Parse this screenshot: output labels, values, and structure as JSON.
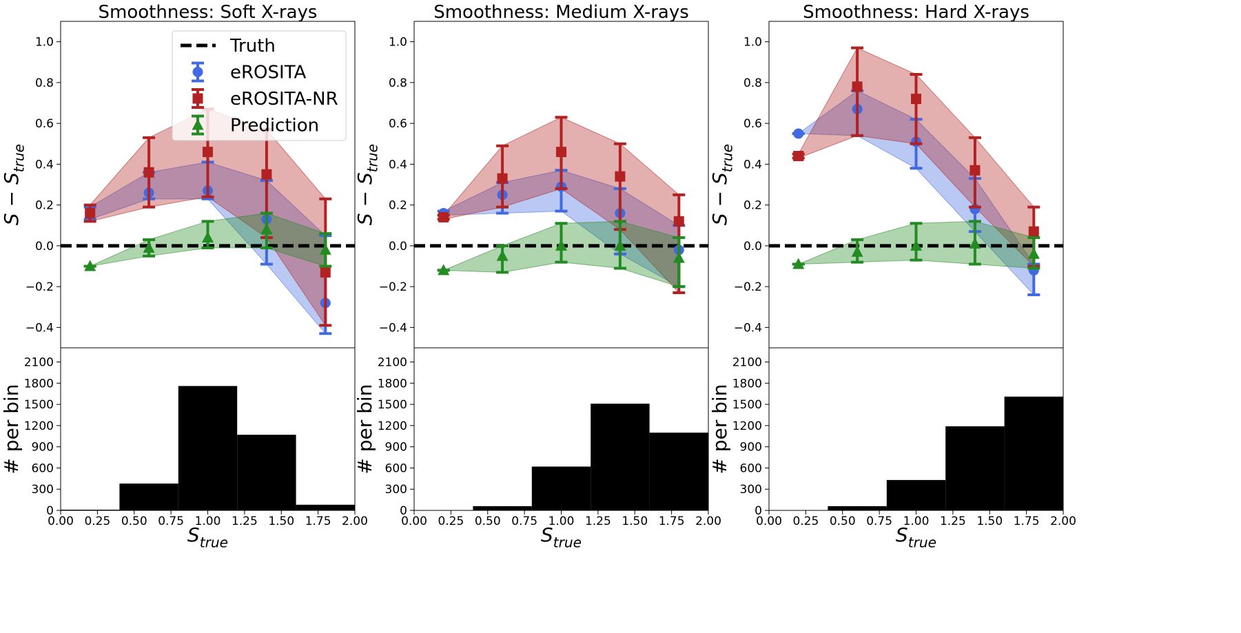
{
  "chart_data": [
    {
      "type": "line",
      "title": "Smoothness: Soft X-rays",
      "ylabel": "S − S",
      "ylabel_sub": "true",
      "xlabel": "S",
      "xlabel_sub": "true",
      "xlim": [
        0,
        2
      ],
      "ylim": [
        -0.5,
        1.1
      ],
      "yticks": [
        -0.4,
        -0.2,
        0.0,
        0.2,
        0.4,
        0.6,
        0.8,
        1.0
      ],
      "xticks": [
        0.0,
        0.25,
        0.5,
        0.75,
        1.0,
        1.25,
        1.5,
        1.75,
        2.0
      ],
      "truth_line": 0,
      "legend_position": "top-right",
      "series": [
        {
          "name": "eROSITA",
          "color": "#4169e1",
          "marker": "circle",
          "x": [
            0.2,
            0.6,
            1.0,
            1.4,
            1.8
          ],
          "y": [
            0.16,
            0.26,
            0.27,
            0.13,
            -0.28
          ],
          "lo": [
            0.13,
            0.23,
            0.23,
            -0.09,
            -0.43
          ],
          "hi": [
            0.19,
            0.36,
            0.41,
            0.32,
            0.05
          ]
        },
        {
          "name": "eROSITA-NR",
          "color": "#b22222",
          "marker": "square",
          "x": [
            0.2,
            0.6,
            1.0,
            1.4,
            1.8
          ],
          "y": [
            0.16,
            0.36,
            0.46,
            0.35,
            -0.13
          ],
          "lo": [
            0.12,
            0.19,
            0.24,
            0.04,
            -0.39
          ],
          "hi": [
            0.2,
            0.53,
            0.67,
            0.57,
            0.23
          ]
        },
        {
          "name": "Prediction",
          "color": "#228b22",
          "marker": "triangle",
          "x": [
            0.2,
            0.6,
            1.0,
            1.4,
            1.8
          ],
          "y": [
            -0.1,
            -0.01,
            0.04,
            0.08,
            -0.02
          ],
          "lo": [
            -0.1,
            -0.05,
            -0.01,
            -0.01,
            -0.1
          ],
          "hi": [
            -0.1,
            0.03,
            0.12,
            0.16,
            0.06
          ]
        }
      ],
      "histogram": {
        "ylabel": "# per bin",
        "ylim": [
          0,
          2300
        ],
        "yticks": [
          0,
          300,
          600,
          900,
          1200,
          1500,
          1800,
          2100
        ],
        "bin_edges": [
          0.0,
          0.4,
          0.8,
          1.2,
          1.6,
          2.0
        ],
        "counts": [
          10,
          380,
          1760,
          1070,
          80
        ]
      }
    },
    {
      "type": "line",
      "title": "Smoothness: Medium X-rays",
      "ylabel": "S − S",
      "ylabel_sub": "true",
      "xlabel": "S",
      "xlabel_sub": "true",
      "xlim": [
        0,
        2
      ],
      "ylim": [
        -0.5,
        1.1
      ],
      "yticks": [
        -0.4,
        -0.2,
        0.0,
        0.2,
        0.4,
        0.6,
        0.8,
        1.0
      ],
      "xticks": [
        0.0,
        0.25,
        0.5,
        0.75,
        1.0,
        1.25,
        1.5,
        1.75,
        2.0
      ],
      "truth_line": 0,
      "series": [
        {
          "name": "eROSITA",
          "color": "#4169e1",
          "marker": "circle",
          "x": [
            0.2,
            0.6,
            1.0,
            1.4,
            1.8
          ],
          "y": [
            0.16,
            0.25,
            0.29,
            0.16,
            -0.02
          ],
          "lo": [
            0.15,
            0.16,
            0.17,
            -0.04,
            -0.2
          ],
          "hi": [
            0.17,
            0.31,
            0.37,
            0.28,
            0.1
          ]
        },
        {
          "name": "eROSITA-NR",
          "color": "#b22222",
          "marker": "square",
          "x": [
            0.2,
            0.6,
            1.0,
            1.4,
            1.8
          ],
          "y": [
            0.14,
            0.33,
            0.46,
            0.34,
            0.12
          ],
          "lo": [
            0.13,
            0.19,
            0.28,
            0.08,
            -0.23
          ],
          "hi": [
            0.15,
            0.49,
            0.63,
            0.5,
            0.25
          ]
        },
        {
          "name": "Prediction",
          "color": "#228b22",
          "marker": "triangle",
          "x": [
            0.2,
            0.6,
            1.0,
            1.4,
            1.8
          ],
          "y": [
            -0.12,
            -0.05,
            0.0,
            0.0,
            -0.06
          ],
          "lo": [
            -0.12,
            -0.13,
            -0.08,
            -0.11,
            -0.2
          ],
          "hi": [
            -0.12,
            0.0,
            0.11,
            0.12,
            0.04
          ]
        }
      ],
      "histogram": {
        "ylabel": "# per bin",
        "ylim": [
          0,
          2300
        ],
        "yticks": [
          0,
          300,
          600,
          900,
          1200,
          1500,
          1800,
          2100
        ],
        "bin_edges": [
          0.0,
          0.4,
          0.8,
          1.2,
          1.6,
          2.0
        ],
        "counts": [
          0,
          60,
          620,
          1510,
          1100
        ]
      }
    },
    {
      "type": "line",
      "title": "Smoothness: Hard X-rays",
      "ylabel": "S − S",
      "ylabel_sub": "true",
      "xlabel": "S",
      "xlabel_sub": "true",
      "xlim": [
        0,
        2
      ],
      "ylim": [
        -0.5,
        1.1
      ],
      "yticks": [
        -0.4,
        -0.2,
        0.0,
        0.2,
        0.4,
        0.6,
        0.8,
        1.0
      ],
      "xticks": [
        0.0,
        0.25,
        0.5,
        0.75,
        1.0,
        1.25,
        1.5,
        1.75,
        2.0
      ],
      "truth_line": 0,
      "series": [
        {
          "name": "eROSITA",
          "color": "#4169e1",
          "marker": "circle",
          "x": [
            0.2,
            0.6,
            1.0,
            1.4,
            1.8
          ],
          "y": [
            0.55,
            0.67,
            0.51,
            0.18,
            -0.12
          ],
          "lo": [
            0.55,
            0.54,
            0.38,
            0.07,
            -0.24
          ],
          "hi": [
            0.55,
            0.76,
            0.62,
            0.33,
            -0.09
          ]
        },
        {
          "name": "eROSITA-NR",
          "color": "#b22222",
          "marker": "square",
          "x": [
            0.2,
            0.6,
            1.0,
            1.4,
            1.8
          ],
          "y": [
            0.44,
            0.78,
            0.72,
            0.37,
            0.07
          ],
          "lo": [
            0.43,
            0.54,
            0.5,
            0.19,
            -0.1
          ],
          "hi": [
            0.45,
            0.97,
            0.84,
            0.53,
            0.19
          ]
        },
        {
          "name": "Prediction",
          "color": "#228b22",
          "marker": "triangle",
          "x": [
            0.2,
            0.6,
            1.0,
            1.4,
            1.8
          ],
          "y": [
            -0.09,
            -0.03,
            0.0,
            0.01,
            -0.04
          ],
          "lo": [
            -0.09,
            -0.08,
            -0.07,
            -0.09,
            -0.11
          ],
          "hi": [
            -0.09,
            0.03,
            0.11,
            0.12,
            0.04
          ]
        }
      ],
      "histogram": {
        "ylabel": "# per bin",
        "ylim": [
          0,
          2300
        ],
        "yticks": [
          0,
          300,
          600,
          900,
          1200,
          1500,
          1800,
          2100
        ],
        "bin_edges": [
          0.0,
          0.4,
          0.8,
          1.2,
          1.6,
          2.0
        ],
        "counts": [
          0,
          60,
          430,
          1190,
          1610
        ]
      }
    }
  ],
  "legend": {
    "truth_label": "Truth"
  }
}
